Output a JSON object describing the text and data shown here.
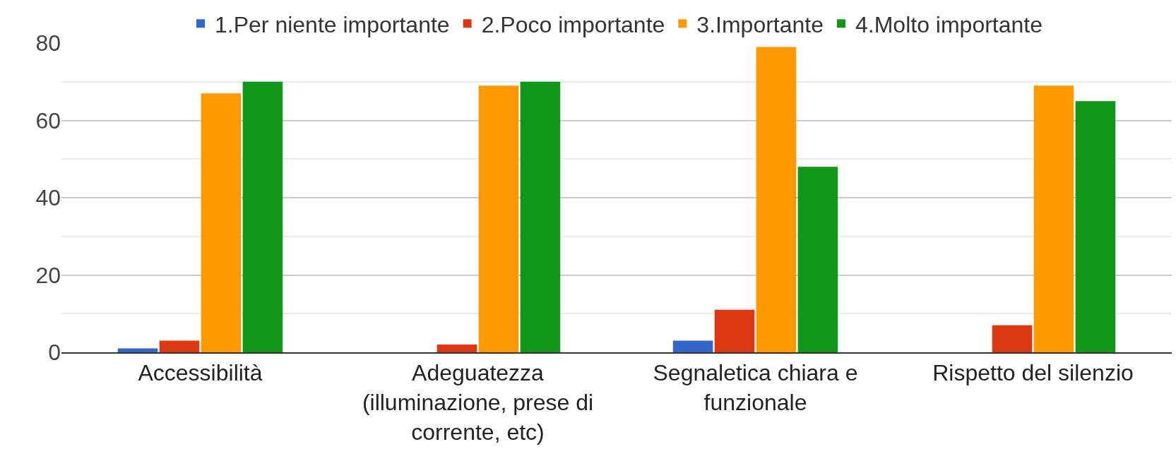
{
  "chart_data": {
    "type": "bar",
    "categories": [
      "Accessibilità",
      "Adeguatezza (illuminazione, prese di corrente, etc)",
      "Segnaletica chiara e funzionale",
      "Rispetto del silenzio"
    ],
    "series": [
      {
        "name": "1.Per niente importante",
        "color": "#3366cc",
        "values": [
          1,
          0,
          3,
          0
        ]
      },
      {
        "name": "2.Poco importante",
        "color": "#dc3912",
        "values": [
          3,
          2,
          11,
          7
        ]
      },
      {
        "name": "3.Importante",
        "color": "#ff9900",
        "values": [
          67,
          69,
          79,
          69
        ]
      },
      {
        "name": "4.Molto importante",
        "color": "#109618",
        "values": [
          70,
          70,
          48,
          65
        ]
      }
    ],
    "ylim": [
      0,
      80
    ],
    "yticks": [
      0,
      {
        "value": 10,
        "label": null
      },
      20,
      {
        "value": 30,
        "label": null
      },
      40,
      {
        "value": 50,
        "label": null
      },
      60,
      {
        "value": 70,
        "label": null
      },
      80
    ],
    "grid": "y",
    "legend": "top"
  }
}
